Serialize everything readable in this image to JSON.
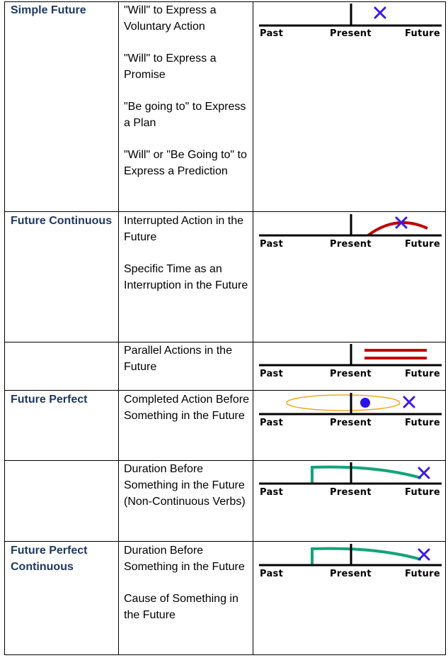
{
  "rows": [
    {
      "tense": "Simple Future",
      "uses": [
        "\"Will\" to Express a Voluntary Action",
        "\"Will\" to Express a Promise",
        "\"Be going to\" to Express a Plan",
        "\"Will\" or \"Be Going to\" to Express a Prediction"
      ]
    },
    {
      "tense": "Future Continuous",
      "uses": [
        "Interrupted Action in the Future",
        "Specific Time as an Interruption in the Future"
      ]
    },
    {
      "tense": "",
      "uses": [
        "Parallel Actions in the Future"
      ]
    },
    {
      "tense": "Future Perfect",
      "uses": [
        "Completed Action Before Something in the Future"
      ]
    },
    {
      "tense": "",
      "uses": [
        "Duration Before Something in the Future (Non-Continuous Verbs)"
      ]
    },
    {
      "tense": "Future Perfect Continuous",
      "uses": [
        "Duration Before Something in the Future",
        "Cause of Something in the Future"
      ]
    }
  ],
  "timeline_labels": {
    "past": "Past",
    "present": "Present",
    "future": "Future"
  },
  "colors": {
    "tense_text": "#1f3864",
    "marker_x": "#3b1ae6",
    "red_action": "#c00000",
    "green_duration": "#14a37a",
    "orange_ellipse": "#f0a81e",
    "blue_dot": "#2b12e8"
  }
}
